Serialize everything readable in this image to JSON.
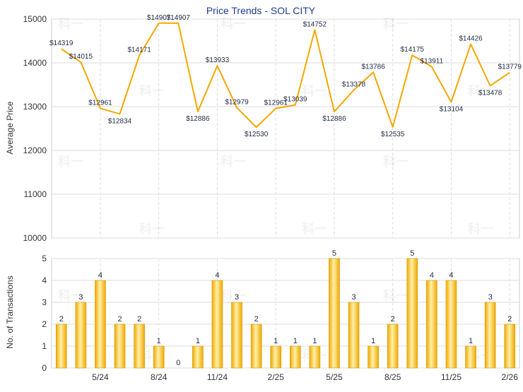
{
  "chart_data": [
    {
      "type": "line",
      "title": "Price Trends - SOL CITY",
      "ylabel": "Average Price",
      "ylim": [
        10000,
        15000
      ],
      "yticks": [
        "10000",
        "11000",
        "12000",
        "13000",
        "14000",
        "15000"
      ],
      "grid": true,
      "series": [
        {
          "values": [
            14319,
            14015,
            12961,
            12834,
            14171,
            14907,
            14907,
            12886,
            13933,
            12979,
            12530,
            12961,
            13039,
            14752,
            12886,
            13378,
            13786,
            12535,
            14175,
            13911,
            13104,
            14426,
            13478,
            13779
          ],
          "labels": [
            "$14319",
            "$14015",
            "$12961",
            "$12834",
            "$14171",
            "$14907",
            "$14907",
            "$12886",
            "$13933",
            "$12979",
            "$12530",
            "$12961",
            "$13039",
            "$14752",
            "$12886",
            "$13378",
            "$13786",
            "$12535",
            "$14175",
            "$13911",
            "$13104",
            "$14426",
            "$13478",
            "$13779"
          ]
        }
      ]
    },
    {
      "type": "bar",
      "ylabel": "No. of Transactions",
      "ylim": [
        0,
        5
      ],
      "yticks": [
        "0",
        "1",
        "2",
        "3",
        "4",
        "5"
      ],
      "grid": true,
      "categories": [
        "",
        "",
        "5/24",
        "",
        "",
        "8/24",
        "",
        "",
        "11/24",
        "",
        "",
        "2/25",
        "",
        "",
        "5/25",
        "",
        "",
        "8/25",
        "",
        "",
        "11/25",
        "",
        "",
        "2/26"
      ],
      "values": [
        2,
        3,
        4,
        2,
        2,
        1,
        0,
        1,
        4,
        3,
        2,
        1,
        1,
        1,
        5,
        3,
        1,
        2,
        5,
        4,
        4,
        1,
        3,
        2
      ],
      "value_labels": [
        "2",
        "3",
        "4",
        "2",
        "2",
        "1",
        "0",
        "1",
        "4",
        "3",
        "2",
        "1",
        "1",
        "1",
        "5",
        "3",
        "1",
        "2",
        "5",
        "4",
        "4",
        "1",
        "3",
        "2"
      ]
    }
  ],
  "colors": {
    "line": "#f5a700",
    "bar_edge": "#d99a00",
    "bar_light": "#fff0a8",
    "bar_dark": "#f0a800",
    "grid": "#dddddd",
    "axis": "#555555",
    "title": "#1f3f8f"
  },
  "watermark_text": "科一"
}
